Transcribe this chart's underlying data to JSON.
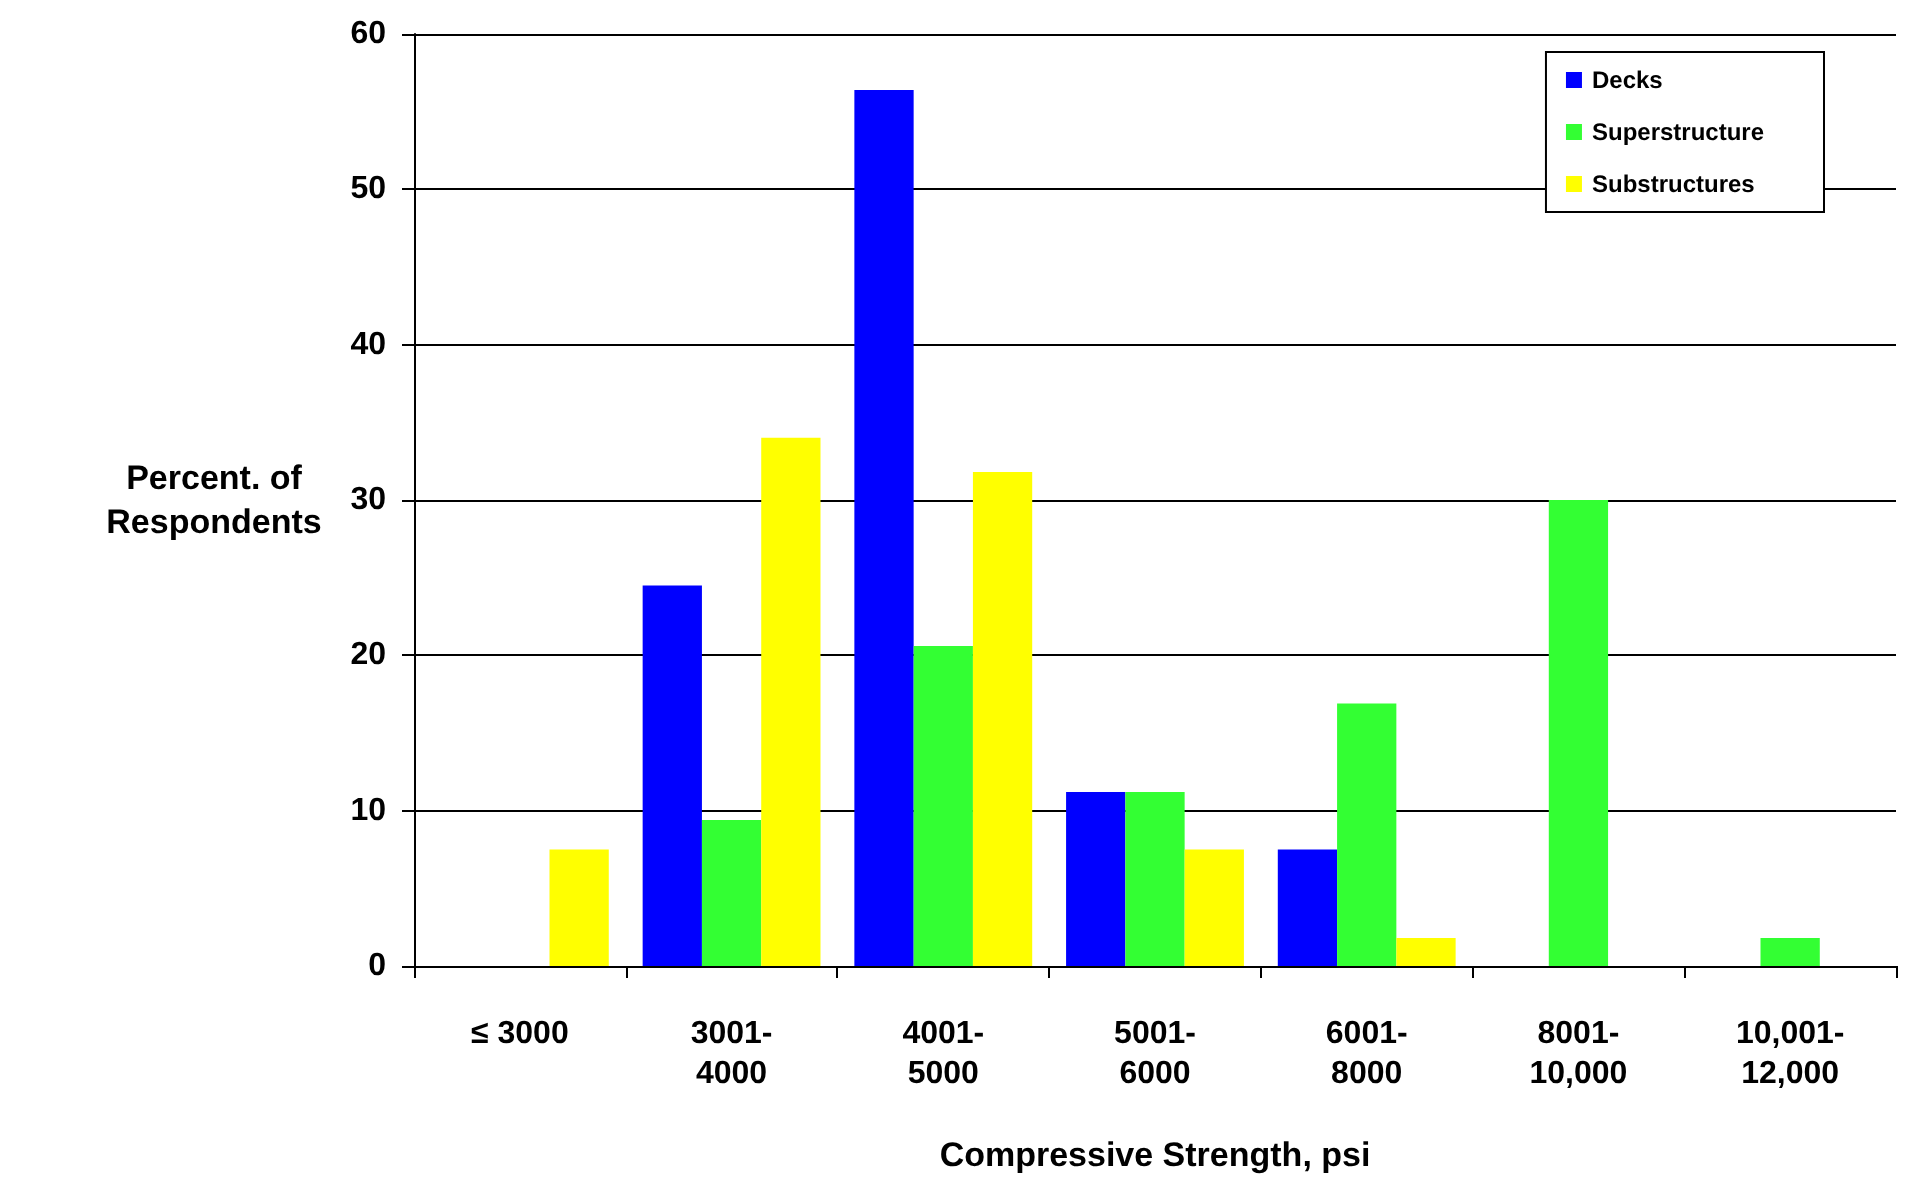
{
  "chart_data": {
    "type": "bar",
    "xlabel": "Compressive Strength, psi",
    "ylabel": "Percent. of\nRespondents",
    "categories": [
      "≤ 3000",
      "3001-\n4000",
      "4001-\n5000",
      "5001-\n6000",
      "6001-\n8000",
      "8001-\n10,000",
      "10,001-\n12,000"
    ],
    "series": [
      {
        "name": "Decks",
        "color": "#0000ff",
        "values": [
          0,
          24.5,
          56.4,
          11.2,
          7.5,
          0,
          0
        ]
      },
      {
        "name": "Superstructure",
        "color": "#33ff33",
        "values": [
          0,
          9.4,
          20.6,
          11.2,
          16.9,
          30.0,
          1.8
        ]
      },
      {
        "name": "Substructures",
        "color": "#ffff00",
        "values": [
          7.5,
          34.0,
          31.8,
          7.5,
          1.8,
          0,
          0
        ]
      }
    ],
    "ylim": [
      0,
      60
    ],
    "yticks": [
      0,
      10,
      20,
      30,
      40,
      50,
      60
    ],
    "grid": "y",
    "legend": "top right"
  }
}
